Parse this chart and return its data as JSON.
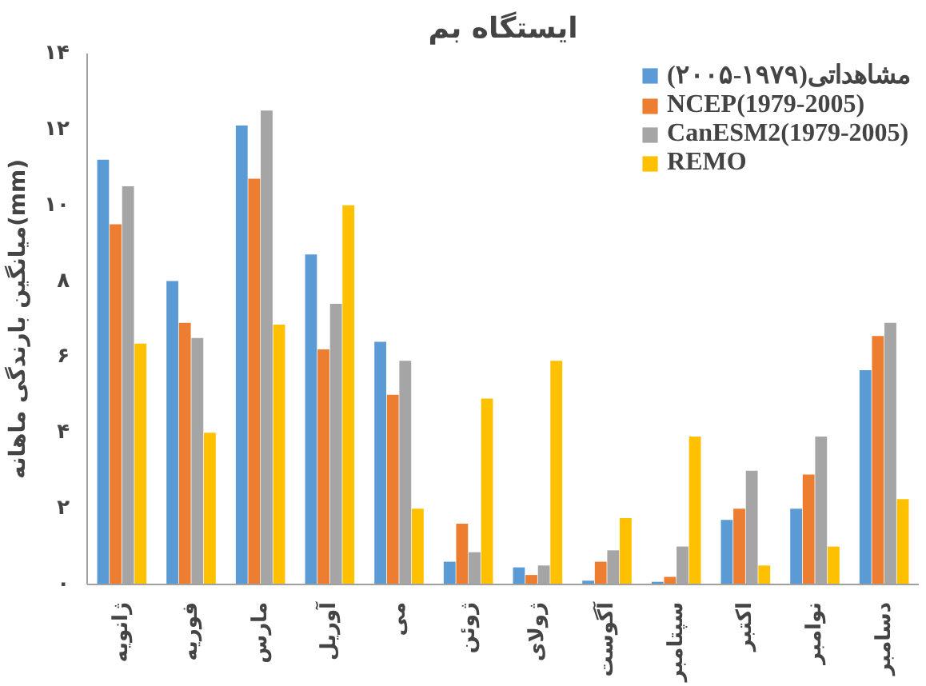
{
  "chart_data": {
    "type": "bar",
    "title": "ایستگاه بم",
    "ylabel": "میانگین بارندگی ماهانه(mm)",
    "categories": [
      "ژانویه",
      "فوریه",
      "مارس",
      "آوریل",
      "می",
      "ژوئن",
      "ژولای",
      "آگوست",
      "سپتامبر",
      "اکتبر",
      "نوامبر",
      "دسامبر"
    ],
    "series": [
      {
        "name": "مشاهداتی(۱۹۷۹-۲۰۰۵)",
        "color": "#5b9bd5",
        "values": [
          11.2,
          8.0,
          12.1,
          8.7,
          6.4,
          0.6,
          0.45,
          0.1,
          0.07,
          1.7,
          2.0,
          5.65
        ]
      },
      {
        "name": "NCEP(1979-2005)",
        "color": "#ed7d31",
        "values": [
          9.5,
          6.9,
          10.7,
          6.2,
          5.0,
          1.6,
          0.25,
          0.6,
          0.2,
          2.0,
          2.9,
          6.55
        ]
      },
      {
        "name": "CanESM2(1979-2005)",
        "color": "#a5a5a5",
        "values": [
          10.5,
          6.5,
          12.5,
          7.4,
          5.9,
          0.85,
          0.5,
          0.9,
          1.0,
          3.0,
          3.9,
          6.9
        ]
      },
      {
        "name": "REMO",
        "color": "#ffc000",
        "values": [
          6.35,
          4.0,
          6.85,
          10.0,
          2.0,
          4.9,
          5.9,
          1.75,
          3.9,
          0.5,
          1.0,
          2.25
        ]
      }
    ],
    "ylim": [
      0,
      14
    ],
    "yticks": [
      {
        "value": 0,
        "label": "۰"
      },
      {
        "value": 2,
        "label": "۲"
      },
      {
        "value": 4,
        "label": "۴"
      },
      {
        "value": 6,
        "label": "۶"
      },
      {
        "value": 8,
        "label": "۸"
      },
      {
        "value": 10,
        "label": "۱۰"
      },
      {
        "value": 12,
        "label": "۱۲"
      },
      {
        "value": 14,
        "label": "۱۴"
      }
    ],
    "grid": false,
    "legend": "top right"
  }
}
